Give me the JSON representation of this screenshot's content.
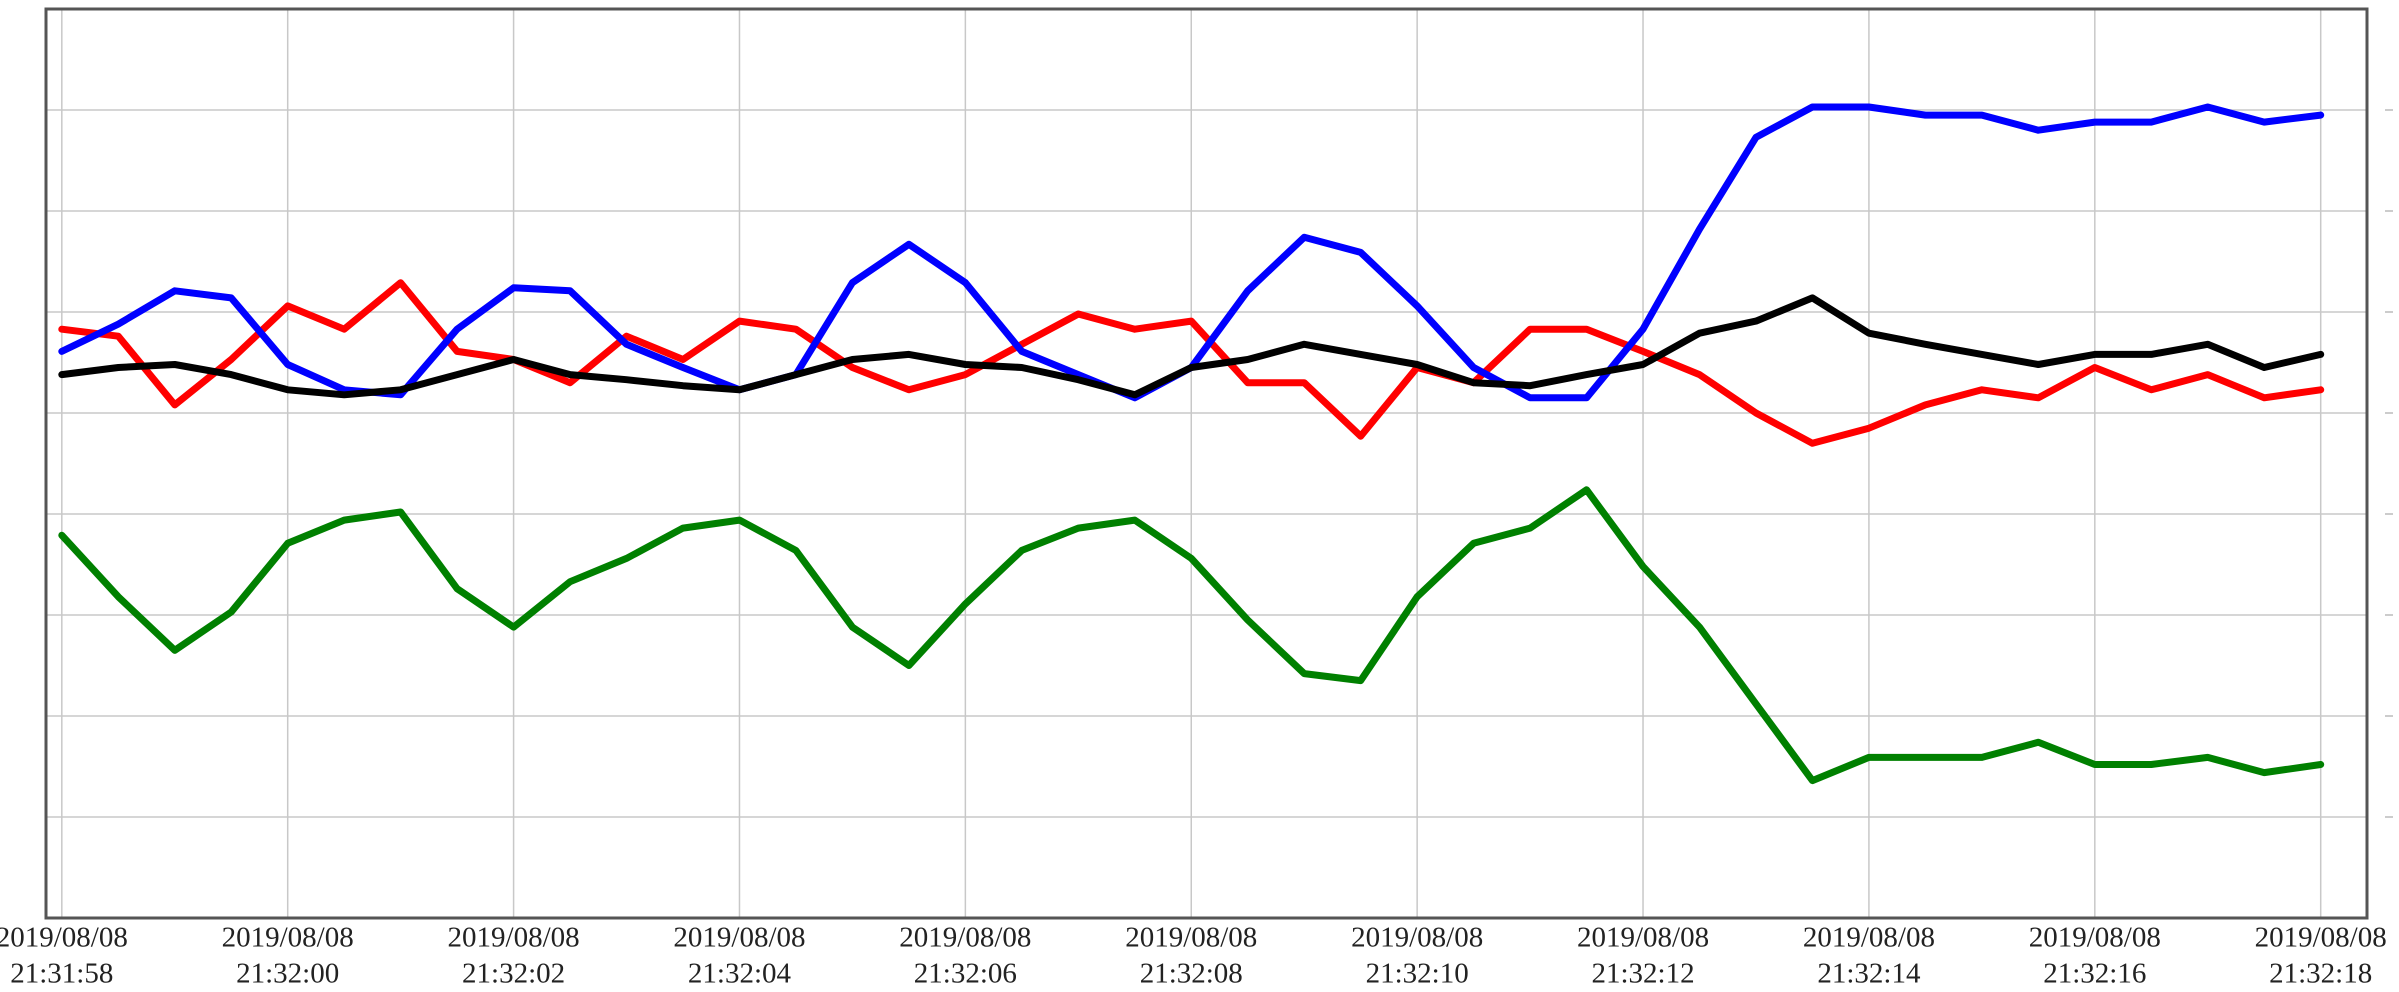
{
  "chart_data": {
    "type": "line",
    "x": [
      "2019-08-08T21:31:58.0",
      "2019-08-08T21:31:58.5",
      "2019-08-08T21:31:59.0",
      "2019-08-08T21:31:59.5",
      "2019-08-08T21:32:00.0",
      "2019-08-08T21:32:00.5",
      "2019-08-08T21:32:01.0",
      "2019-08-08T21:32:01.5",
      "2019-08-08T21:32:02.0",
      "2019-08-08T21:32:02.5",
      "2019-08-08T21:32:03.0",
      "2019-08-08T21:32:03.5",
      "2019-08-08T21:32:04.0",
      "2019-08-08T21:32:04.5",
      "2019-08-08T21:32:05.0",
      "2019-08-08T21:32:05.5",
      "2019-08-08T21:32:06.0",
      "2019-08-08T21:32:06.5",
      "2019-08-08T21:32:07.0",
      "2019-08-08T21:32:07.5",
      "2019-08-08T21:32:08.0",
      "2019-08-08T21:32:08.5",
      "2019-08-08T21:32:09.0",
      "2019-08-08T21:32:09.5",
      "2019-08-08T21:32:10.0",
      "2019-08-08T21:32:10.5",
      "2019-08-08T21:32:11.0",
      "2019-08-08T21:32:11.5",
      "2019-08-08T21:32:12.0",
      "2019-08-08T21:32:12.5",
      "2019-08-08T21:32:13.0",
      "2019-08-08T21:32:13.5",
      "2019-08-08T21:32:14.0",
      "2019-08-08T21:32:14.5",
      "2019-08-08T21:32:15.0",
      "2019-08-08T21:32:15.5",
      "2019-08-08T21:32:16.0",
      "2019-08-08T21:32:16.5",
      "2019-08-08T21:32:17.0",
      "2019-08-08T21:32:17.5",
      "2019-08-08T21:32:18.0"
    ],
    "series": [
      {
        "color": "#008000",
        "values": [
          3.79,
          3.18,
          2.65,
          3.03,
          3.71,
          3.94,
          4.02,
          3.26,
          2.88,
          3.33,
          3.56,
          3.86,
          3.94,
          3.64,
          2.88,
          2.5,
          3.11,
          3.64,
          3.86,
          3.94,
          3.56,
          2.95,
          2.42,
          2.35,
          3.18,
          3.71,
          3.86,
          4.24,
          3.48,
          2.88,
          2.12,
          1.36,
          1.59,
          1.59,
          1.59,
          1.74,
          1.52,
          1.52,
          1.59,
          1.44,
          1.52
        ]
      },
      {
        "color": "#ff0000",
        "values": [
          5.83,
          5.76,
          5.08,
          5.53,
          6.06,
          5.83,
          6.29,
          5.61,
          5.53,
          5.3,
          5.76,
          5.53,
          5.91,
          5.83,
          5.45,
          5.23,
          5.38,
          5.68,
          5.98,
          5.83,
          5.91,
          5.3,
          5.3,
          4.77,
          5.45,
          5.3,
          5.83,
          5.83,
          5.61,
          5.38,
          5.0,
          4.7,
          4.85,
          5.08,
          5.23,
          5.15,
          5.45,
          5.23,
          5.38,
          5.15,
          5.23
        ]
      },
      {
        "color": "#0000ff",
        "values": [
          5.61,
          5.88,
          6.21,
          6.14,
          5.48,
          5.23,
          5.18,
          5.83,
          6.24,
          6.21,
          5.68,
          5.45,
          5.23,
          5.38,
          6.29,
          6.67,
          6.29,
          5.61,
          5.38,
          5.15,
          5.45,
          6.21,
          6.74,
          6.59,
          6.06,
          5.45,
          5.15,
          5.15,
          5.83,
          6.82,
          7.73,
          8.03,
          8.03,
          7.95,
          7.95,
          7.8,
          7.88,
          7.88,
          8.03,
          7.88,
          7.95
        ]
      },
      {
        "color": "#000000",
        "values": [
          5.38,
          5.45,
          5.48,
          5.38,
          5.23,
          5.18,
          5.23,
          5.38,
          5.53,
          5.38,
          5.33,
          5.27,
          5.23,
          5.38,
          5.53,
          5.58,
          5.48,
          5.45,
          5.33,
          5.18,
          5.45,
          5.53,
          5.68,
          5.58,
          5.48,
          5.3,
          5.27,
          5.38,
          5.48,
          5.79,
          5.91,
          6.14,
          5.79,
          5.68,
          5.58,
          5.48,
          5.58,
          5.58,
          5.68,
          5.45,
          5.58
        ]
      }
    ],
    "xlim": [
      "2019-08-08T21:31:57.86",
      "2019-08-08T21:32:18.41"
    ],
    "xticks": [
      {
        "value": "2019-08-08T21:31:58",
        "label": [
          "2019/08/08",
          "21:31:58"
        ]
      },
      {
        "value": "2019-08-08T21:32:00",
        "label": [
          "2019/08/08",
          "21:32:00"
        ]
      },
      {
        "value": "2019-08-08T21:32:02",
        "label": [
          "2019/08/08",
          "21:32:02"
        ]
      },
      {
        "value": "2019-08-08T21:32:04",
        "label": [
          "2019/08/08",
          "21:32:04"
        ]
      },
      {
        "value": "2019-08-08T21:32:06",
        "label": [
          "2019/08/08",
          "21:32:06"
        ]
      },
      {
        "value": "2019-08-08T21:32:08",
        "label": [
          "2019/08/08",
          "21:32:08"
        ]
      },
      {
        "value": "2019-08-08T21:32:10",
        "label": [
          "2019/08/08",
          "21:32:10"
        ]
      },
      {
        "value": "2019-08-08T21:32:12",
        "label": [
          "2019/08/08",
          "21:32:12"
        ]
      },
      {
        "value": "2019-08-08T21:32:14",
        "label": [
          "2019/08/08",
          "21:32:14"
        ]
      },
      {
        "value": "2019-08-08T21:32:16",
        "label": [
          "2019/08/08",
          "21:32:16"
        ]
      },
      {
        "value": "2019-08-08T21:32:18",
        "label": [
          "2019/08/08",
          "21:32:18"
        ]
      }
    ],
    "ylim": [
      0,
      9
    ],
    "yticks": [
      1,
      2,
      3,
      4,
      5,
      6,
      7,
      8
    ],
    "grid": true
  }
}
